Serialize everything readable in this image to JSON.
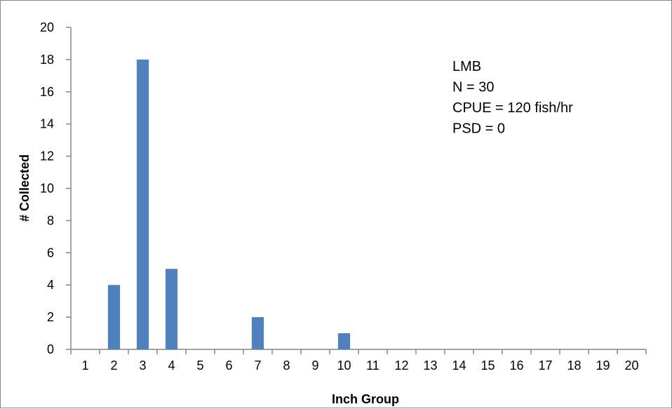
{
  "chart_data": {
    "type": "bar",
    "categories": [
      "1",
      "2",
      "3",
      "4",
      "5",
      "6",
      "7",
      "8",
      "9",
      "10",
      "11",
      "12",
      "13",
      "14",
      "15",
      "16",
      "17",
      "18",
      "19",
      "20"
    ],
    "values": [
      0,
      4,
      18,
      5,
      0,
      0,
      2,
      0,
      0,
      1,
      0,
      0,
      0,
      0,
      0,
      0,
      0,
      0,
      0,
      0
    ],
    "xlabel": "Inch Group",
    "ylabel": "# Collected",
    "ylim": [
      0,
      20
    ],
    "yticks": [
      0,
      2,
      4,
      6,
      8,
      10,
      12,
      14,
      16,
      18,
      20
    ],
    "grid": false,
    "legend": "none",
    "bar_color": "#4F81BD",
    "annotations": [
      "LMB",
      "N = 30",
      "CPUE = 120 fish/hr",
      "PSD = 0"
    ]
  }
}
